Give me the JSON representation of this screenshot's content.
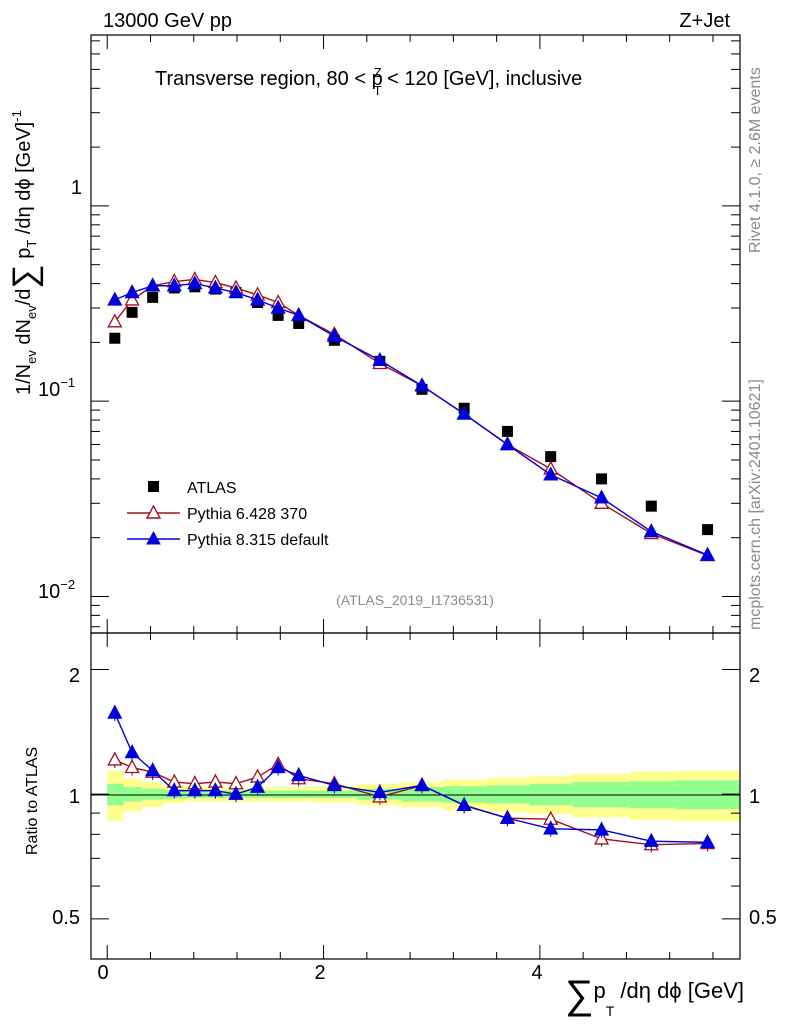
{
  "header": {
    "energy_label": "13000 GeV pp",
    "process_label": "Z+Jet"
  },
  "side_text": {
    "rivet": "Rivet 4.1.0, ≥ 2.6M events",
    "mcplots": "mcplots.cern.ch [arXiv:2401.10621]"
  },
  "main_panel": {
    "title": "Transverse region, 80 < pZT < 120 [GeV], inclusive",
    "title_prefix": "Transverse region, 80 < p",
    "title_sup": "Z",
    "title_sub": "T",
    "title_suffix": " < 120 [GeV], inclusive",
    "analysis_id": "(ATLAS_2019_I1736531)",
    "ylabel": "1/Nev dNev/d∑ pT /dη dφ [GeV]-1",
    "ylabel_parts": {
      "a": "1/N",
      "a_sub": "ev",
      "b": " dN",
      "b_sub": "ev",
      "c": "/d",
      "sum": "∑",
      "d": " p",
      "d_sub": "T",
      "e": " /dη dϕ  [GeV]",
      "e_sup": "-1"
    },
    "ytick_labels": {
      "one": "1",
      "pm1_base": "10",
      "pm1_exp": "−1",
      "pm2_base": "10",
      "pm2_exp": "−2"
    }
  },
  "ratio_panel": {
    "ylabel": "Ratio to ATLAS",
    "ytick_labels": [
      "0.5",
      "1",
      "2"
    ]
  },
  "x_axis": {
    "label": "∑ pT /dη dϕ [GeV]",
    "label_sum": "∑",
    "label_p": "p",
    "label_sub": "T",
    "label_rest": " /dη dϕ [GeV]",
    "tick_labels": [
      "0",
      "2",
      "4"
    ]
  },
  "legend": {
    "entries": [
      {
        "name": "ATLAS"
      },
      {
        "name": "Pythia 6.428 370"
      },
      {
        "name": "Pythia 8.315 default"
      }
    ]
  },
  "chart_data": [
    {
      "type": "scatter",
      "panel": "main",
      "title": "Transverse region, 80 < pZT < 120 [GeV], inclusive",
      "xlabel": "∑ pT /dη dϕ [GeV]",
      "ylabel": "1/Nev dNev/d∑ pT /dη dϕ [GeV]-1",
      "yscale": "log",
      "xlim": [
        -0.15,
        5.85
      ],
      "ylim": [
        0.0065,
        7.5
      ],
      "x": [
        0.07,
        0.23,
        0.42,
        0.62,
        0.81,
        1.0,
        1.19,
        1.39,
        1.58,
        1.77,
        2.1,
        2.52,
        2.91,
        3.3,
        3.7,
        4.1,
        4.57,
        5.03,
        5.55
      ],
      "series": [
        {
          "name": "ATLAS",
          "color": "#000000",
          "marker": "square",
          "values": [
            0.21,
            0.285,
            0.34,
            0.38,
            0.385,
            0.375,
            0.36,
            0.32,
            0.275,
            0.25,
            0.205,
            0.16,
            0.115,
            0.092,
            0.07,
            0.052,
            0.04,
            0.029,
            0.022
          ]
        },
        {
          "name": "Pythia 6.428 370",
          "color": "#a01020",
          "marker": "open-triangle",
          "values": [
            0.255,
            0.33,
            0.39,
            0.41,
            0.42,
            0.405,
            0.38,
            0.35,
            0.32,
            0.275,
            0.22,
            0.156,
            0.12,
            0.086,
            0.06,
            0.045,
            0.03,
            0.021,
            0.0162
          ]
        },
        {
          "name": "Pythia 8.315 default",
          "color": "#0000dd",
          "marker": "filled-triangle",
          "values": [
            0.33,
            0.36,
            0.39,
            0.39,
            0.4,
            0.38,
            0.36,
            0.33,
            0.3,
            0.275,
            0.215,
            0.162,
            0.12,
            0.086,
            0.06,
            0.042,
            0.032,
            0.0215,
            0.0163
          ]
        }
      ]
    },
    {
      "type": "line",
      "panel": "ratio",
      "ylabel": "Ratio to ATLAS",
      "yscale": "log",
      "xlim": [
        -0.15,
        5.85
      ],
      "ylim": [
        0.4,
        2.45
      ],
      "x": [
        0.07,
        0.23,
        0.42,
        0.62,
        0.81,
        1.0,
        1.19,
        1.39,
        1.58,
        1.77,
        2.1,
        2.52,
        2.91,
        3.3,
        3.7,
        4.1,
        4.57,
        5.03,
        5.55
      ],
      "bins": [
        0.0,
        0.15,
        0.32,
        0.52,
        0.72,
        0.91,
        1.1,
        1.29,
        1.48,
        1.68,
        1.88,
        2.31,
        2.72,
        3.1,
        3.5,
        3.9,
        4.3,
        4.83,
        5.25,
        5.85
      ],
      "series": [
        {
          "name": "Pythia 6.428 370",
          "color": "#a01020",
          "marker": "open-triangle",
          "values": [
            1.21,
            1.16,
            1.13,
            1.07,
            1.06,
            1.07,
            1.06,
            1.1,
            1.18,
            1.09,
            1.06,
            0.985,
            1.05,
            0.94,
            0.875,
            0.87,
            0.78,
            0.755,
            0.76
          ]
        },
        {
          "name": "Pythia 8.315 default",
          "color": "#0000dd",
          "marker": "filled-triangle",
          "values": [
            1.57,
            1.26,
            1.14,
            1.02,
            1.02,
            1.02,
            1.0,
            1.04,
            1.16,
            1.11,
            1.05,
            1.01,
            1.05,
            0.94,
            0.875,
            0.825,
            0.82,
            0.77,
            0.765
          ]
        }
      ],
      "error_bands": {
        "stat": {
          "color": "#90ff90",
          "lo": [
            0.94,
            0.96,
            0.97,
            0.975,
            0.98,
            0.98,
            0.98,
            0.98,
            0.98,
            0.98,
            0.98,
            0.97,
            0.96,
            0.955,
            0.95,
            0.94,
            0.93,
            0.925,
            0.92
          ],
          "hi": [
            1.06,
            1.04,
            1.03,
            1.025,
            1.02,
            1.02,
            1.02,
            1.02,
            1.02,
            1.02,
            1.02,
            1.03,
            1.04,
            1.045,
            1.05,
            1.06,
            1.07,
            1.075,
            1.08
          ]
        },
        "total": {
          "color": "#ffff90",
          "lo": [
            0.86,
            0.91,
            0.93,
            0.95,
            0.96,
            0.96,
            0.96,
            0.96,
            0.96,
            0.96,
            0.955,
            0.94,
            0.93,
            0.915,
            0.905,
            0.895,
            0.88,
            0.865,
            0.86
          ],
          "hi": [
            1.14,
            1.09,
            1.07,
            1.05,
            1.04,
            1.04,
            1.04,
            1.04,
            1.04,
            1.04,
            1.045,
            1.06,
            1.07,
            1.085,
            1.095,
            1.105,
            1.12,
            1.135,
            1.14
          ]
        }
      }
    }
  ]
}
